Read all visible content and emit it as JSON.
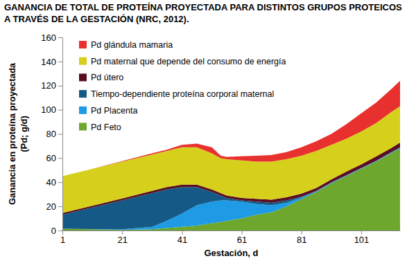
{
  "chart_data": {
    "type": "area",
    "title": [
      "GANANCIA DE TOTAL DE PROTEÍNA PROYECTADA PARA DISTINTOS GRUPOS PROTEICOS",
      "A TRAVÉS DE LA GESTACIÓN (NRC, 2012)."
    ],
    "xlabel": "Gestación, d",
    "ylabel": [
      "Ganancia en proteína proyectada",
      "(Pd; g/d)"
    ],
    "stacked": true,
    "legend": "upper left",
    "grid": false,
    "xlim": [
      1,
      114
    ],
    "xticks": [
      1,
      21,
      41,
      61,
      81,
      101
    ],
    "ylim": [
      0,
      160
    ],
    "yticks": [
      0,
      20,
      40,
      60,
      80,
      100,
      120,
      140,
      160
    ],
    "x": [
      1,
      11,
      21,
      31,
      36,
      41,
      46,
      51,
      54,
      56,
      61,
      66,
      71,
      76,
      81,
      86,
      91,
      96,
      101,
      106,
      111,
      114
    ],
    "series": [
      {
        "name": "Pd glándula mamaria",
        "color": "#e8302e",
        "values": [
          0,
          0,
          0.5,
          1,
          1,
          2,
          3,
          5,
          2,
          2,
          3.5,
          5,
          5.5,
          6,
          7,
          8,
          9,
          12,
          15,
          17,
          19,
          21
        ]
      },
      {
        "name": "Pd maternal que depende del consumo de energía",
        "color": "#d6cf1c",
        "values": [
          30.5,
          30.5,
          30.5,
          30.2,
          30,
          31,
          31,
          30,
          29,
          30,
          31,
          30.8,
          31.5,
          31.5,
          31.5,
          30.7,
          28.7,
          27.2,
          27.2,
          27.7,
          29.7,
          30.2
        ]
      },
      {
        "name": "Pd útero",
        "color": "#5a0e1f",
        "values": [
          1.5,
          1.5,
          1.5,
          1.8,
          2,
          2,
          2,
          2,
          2,
          2,
          2,
          2.2,
          2.5,
          2.5,
          2.5,
          2.5,
          2.5,
          3,
          3,
          3.5,
          3.5,
          4
        ]
      },
      {
        "name": "Tiempo-dependiente proteína corporal maternal",
        "color": "#155a86",
        "values": [
          11.5,
          17.8,
          24,
          28,
          26,
          22,
          15,
          8,
          4,
          2,
          1,
          2,
          2,
          2,
          0.5,
          0.3,
          0.3,
          0.3,
          0.3,
          0.3,
          0.3,
          0.3
        ]
      },
      {
        "name": "Pd Placenta",
        "color": "#1e9be4",
        "values": [
          0,
          0.2,
          0.5,
          2,
          6,
          11,
          17,
          18,
          18,
          17,
          14,
          9,
          6,
          3,
          1.5,
          0.5,
          0.5,
          0.5,
          0.5,
          0.5,
          0.5,
          0.5
        ]
      },
      {
        "name": "Pd Feto",
        "color": "#6ea72d",
        "values": [
          1.5,
          1,
          0.5,
          1,
          2,
          3,
          4,
          6,
          7,
          8,
          10,
          13,
          15,
          20,
          26,
          32,
          39,
          45,
          51,
          57,
          64,
          68
        ]
      }
    ]
  }
}
